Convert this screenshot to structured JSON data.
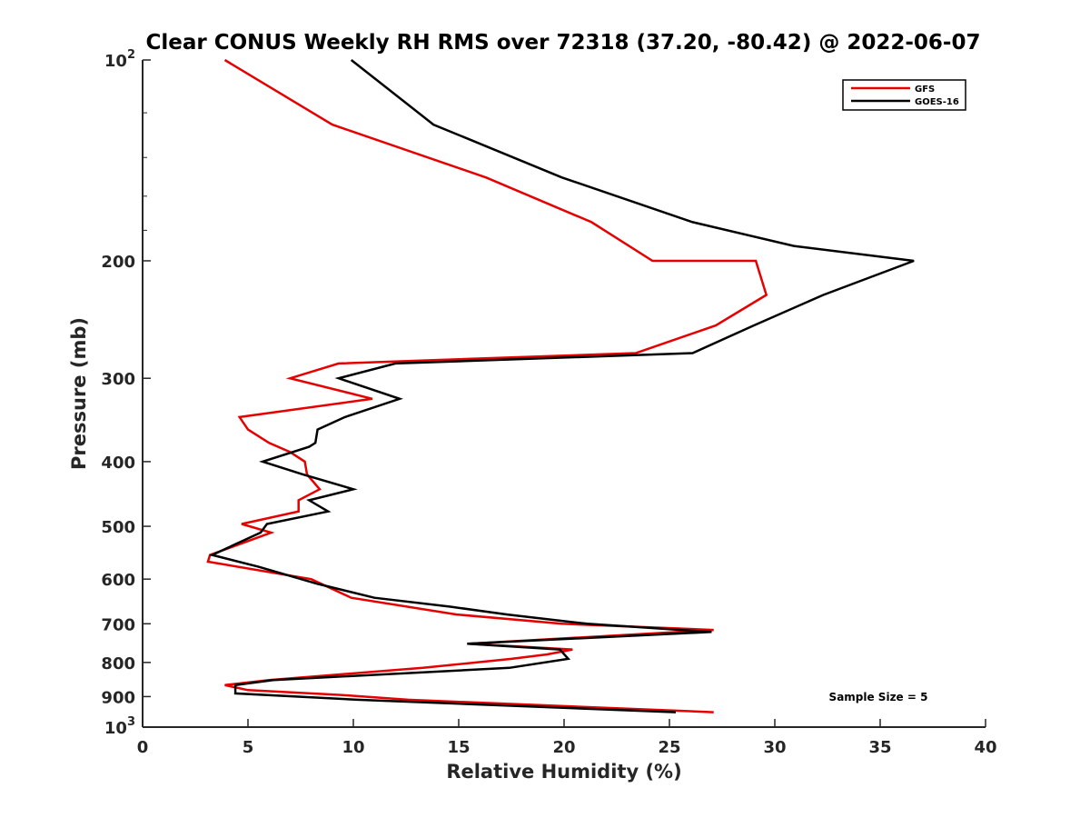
{
  "chart_data": {
    "type": "line",
    "title": "Clear CONUS Weekly RH RMS over 72318 (37.20, -80.42) @ 2022-06-07",
    "xlabel": "Relative Humidity (%)",
    "ylabel": "Pressure (mb)",
    "xlim": [
      0,
      40
    ],
    "ylim": [
      100,
      1000
    ],
    "y_scale": "log",
    "y_reversed": true,
    "x_ticks": [
      0,
      5,
      10,
      15,
      20,
      25,
      30,
      35,
      40
    ],
    "y_ticks": [
      {
        "value": 100,
        "base": "10",
        "exp": "2"
      },
      {
        "value": 200,
        "label": "200"
      },
      {
        "value": 300,
        "label": "300"
      },
      {
        "value": 400,
        "label": "400"
      },
      {
        "value": 500,
        "label": "500"
      },
      {
        "value": 600,
        "label": "600"
      },
      {
        "value": 700,
        "label": "700"
      },
      {
        "value": 800,
        "label": "800"
      },
      {
        "value": 900,
        "label": "900"
      },
      {
        "value": 1000,
        "base": "10",
        "exp": "3"
      }
    ],
    "grid": false,
    "legend_position": "top-right",
    "series": [
      {
        "name": "GFS",
        "color": "#e60000",
        "points": [
          [
            3.9,
            100
          ],
          [
            9.0,
            125
          ],
          [
            16.3,
            150
          ],
          [
            21.3,
            175
          ],
          [
            24.2,
            200
          ],
          [
            29.1,
            200
          ],
          [
            29.6,
            225
          ],
          [
            27.2,
            250
          ],
          [
            23.4,
            275
          ],
          [
            9.3,
            285
          ],
          [
            7.0,
            300
          ],
          [
            10.9,
            322
          ],
          [
            4.6,
            343
          ],
          [
            5.0,
            358
          ],
          [
            6.0,
            375
          ],
          [
            7.0,
            387
          ],
          [
            7.7,
            400
          ],
          [
            7.8,
            418
          ],
          [
            8.4,
            440
          ],
          [
            7.4,
            457
          ],
          [
            7.4,
            475
          ],
          [
            4.7,
            496
          ],
          [
            6.1,
            511
          ],
          [
            3.2,
            552
          ],
          [
            3.1,
            565
          ],
          [
            8.0,
            600
          ],
          [
            9.9,
            640
          ],
          [
            14.9,
            678
          ],
          [
            19.9,
            700
          ],
          [
            27.1,
            715
          ],
          [
            15.5,
            750
          ],
          [
            20.4,
            765
          ],
          [
            19.2,
            778
          ],
          [
            17.5,
            790
          ],
          [
            13.3,
            815
          ],
          [
            6.0,
            850
          ],
          [
            3.9,
            865
          ],
          [
            5.0,
            880
          ],
          [
            9.4,
            895
          ],
          [
            12.6,
            910
          ],
          [
            27.1,
            950
          ]
        ]
      },
      {
        "name": "GOES-16",
        "color": "#000000",
        "points": [
          [
            9.9,
            100
          ],
          [
            13.8,
            125
          ],
          [
            19.9,
            150
          ],
          [
            26.1,
            175
          ],
          [
            30.9,
            190
          ],
          [
            36.6,
            200
          ],
          [
            32.3,
            225
          ],
          [
            29.0,
            250
          ],
          [
            26.1,
            275
          ],
          [
            12.0,
            285
          ],
          [
            9.3,
            300
          ],
          [
            12.2,
            322
          ],
          [
            9.6,
            343
          ],
          [
            8.3,
            358
          ],
          [
            8.2,
            375
          ],
          [
            7.9,
            380
          ],
          [
            5.7,
            400
          ],
          [
            7.6,
            418
          ],
          [
            10.0,
            440
          ],
          [
            7.9,
            457
          ],
          [
            8.8,
            475
          ],
          [
            5.9,
            496
          ],
          [
            5.6,
            511
          ],
          [
            3.3,
            552
          ],
          [
            5.5,
            575
          ],
          [
            8.3,
            610
          ],
          [
            11.0,
            640
          ],
          [
            14.6,
            660
          ],
          [
            17.3,
            678
          ],
          [
            21.1,
            700
          ],
          [
            27.0,
            720
          ],
          [
            15.4,
            750
          ],
          [
            19.8,
            765
          ],
          [
            20.2,
            790
          ],
          [
            17.4,
            815
          ],
          [
            6.2,
            850
          ],
          [
            4.4,
            865
          ],
          [
            4.4,
            890
          ],
          [
            10.2,
            910
          ],
          [
            25.3,
            950
          ]
        ]
      }
    ],
    "legend": [
      {
        "label": "GFS",
        "color": "#e60000"
      },
      {
        "label": "GOES-16",
        "color": "#000000"
      }
    ],
    "annotation": "Sample Size = 5"
  }
}
